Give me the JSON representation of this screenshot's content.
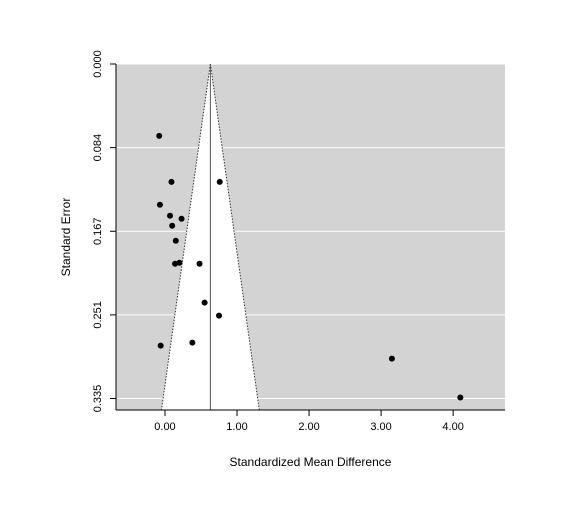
{
  "chart_data": {
    "type": "scatter",
    "subtype": "funnel",
    "title": "",
    "xlabel": "Standardized Mean Difference",
    "ylabel": "Standard Error",
    "xlim": [
      -0.68,
      4.72
    ],
    "ylim": [
      0.0,
      0.3465
    ],
    "y_inverted": true,
    "x_ticks": [
      {
        "value": 0.0,
        "label": "0.00"
      },
      {
        "value": 1.0,
        "label": "1.00"
      },
      {
        "value": 2.0,
        "label": "2.00"
      },
      {
        "value": 3.0,
        "label": "3.00"
      },
      {
        "value": 4.0,
        "label": "4.00"
      }
    ],
    "y_ticks": [
      {
        "value": 0.0,
        "label": "0.000"
      },
      {
        "value": 0.08375,
        "label": "0.084"
      },
      {
        "value": 0.1675,
        "label": "0.167"
      },
      {
        "value": 0.25125,
        "label": "0.251"
      },
      {
        "value": 0.335,
        "label": "0.335"
      }
    ],
    "grid": true,
    "gridlines_y": [
      0.0,
      0.08375,
      0.1675,
      0.25125,
      0.335
    ],
    "summary_estimate": 0.63,
    "funnel_bottom_se": 0.3465,
    "funnel_z": 1.96,
    "points": [
      {
        "x": -0.08,
        "y": 0.072
      },
      {
        "x": 0.09,
        "y": 0.118
      },
      {
        "x": 0.76,
        "y": 0.118
      },
      {
        "x": -0.07,
        "y": 0.141
      },
      {
        "x": 0.07,
        "y": 0.152
      },
      {
        "x": 0.23,
        "y": 0.155
      },
      {
        "x": 0.1,
        "y": 0.162
      },
      {
        "x": 0.15,
        "y": 0.177
      },
      {
        "x": 0.2,
        "y": 0.199
      },
      {
        "x": 0.14,
        "y": 0.2
      },
      {
        "x": 0.48,
        "y": 0.2
      },
      {
        "x": 0.55,
        "y": 0.239
      },
      {
        "x": 0.75,
        "y": 0.252
      },
      {
        "x": 0.38,
        "y": 0.279
      },
      {
        "x": -0.06,
        "y": 0.282
      },
      {
        "x": 3.15,
        "y": 0.295
      },
      {
        "x": 4.1,
        "y": 0.334
      }
    ]
  },
  "colors": {
    "panel_background": "#d3d3d3",
    "funnel_fill": "#ffffff",
    "gridline": "#ffffff",
    "point": "#000000",
    "axis": "#000000"
  }
}
